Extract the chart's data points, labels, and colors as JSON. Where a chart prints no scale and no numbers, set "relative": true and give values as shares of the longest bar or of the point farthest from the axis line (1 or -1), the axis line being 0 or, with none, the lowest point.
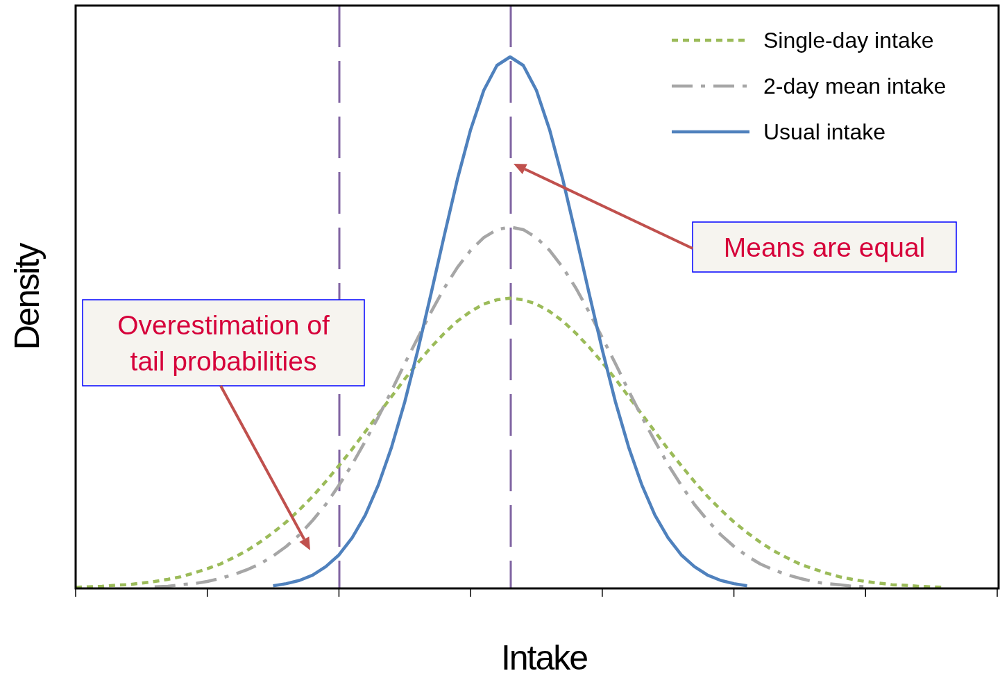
{
  "chart_data": {
    "type": "line",
    "xlabel": "Intake",
    "ylabel": "Density",
    "relative": true,
    "legend": "top right",
    "categories": [
      null,
      null,
      null,
      null,
      null,
      null,
      null,
      null,
      null,
      null,
      null,
      null,
      null,
      null,
      null,
      null,
      null,
      null,
      null,
      null,
      null,
      null,
      null,
      null,
      null,
      null,
      null,
      null,
      null,
      null,
      null,
      null,
      null,
      null,
      null,
      null,
      null,
      null,
      null,
      null,
      null,
      null,
      null,
      null,
      null,
      null,
      null,
      null,
      null,
      null,
      null,
      null,
      null,
      null,
      null,
      null,
      null,
      null,
      null,
      null,
      null,
      null,
      null,
      null,
      null,
      null,
      null,
      null,
      null,
      null,
      null
    ],
    "series": [
      {
        "name": "Single-day intake",
        "color": "#9bbb59",
        "line_style": "dotted",
        "values": [
          0.002,
          0.003,
          0.004,
          0.006,
          0.007,
          0.01,
          0.013,
          0.017,
          0.022,
          0.029,
          0.037,
          0.046,
          0.058,
          0.071,
          0.087,
          0.105,
          0.125,
          0.148,
          0.173,
          0.201,
          0.231,
          0.262,
          0.295,
          0.328,
          0.361,
          0.394,
          0.425,
          0.454,
          0.48,
          0.503,
          0.521,
          0.535,
          0.543,
          0.546,
          0.543,
          0.535,
          0.521,
          0.503,
          0.48,
          0.454,
          0.425,
          0.394,
          0.361,
          0.328,
          0.295,
          0.262,
          0.231,
          0.201,
          0.173,
          0.148,
          0.125,
          0.105,
          0.087,
          0.071,
          0.058,
          0.046,
          0.037,
          0.029,
          0.022,
          0.017,
          0.013,
          0.01,
          0.007,
          0.006,
          0.004,
          0.003,
          0.002,
          null,
          null,
          null,
          null
        ]
      },
      {
        "name": "2-day mean intake",
        "color": "#a6a6a6",
        "line_style": "dashed",
        "values": [
          null,
          null,
          null,
          null,
          null,
          null,
          0.003,
          0.004,
          0.007,
          0.009,
          0.013,
          0.019,
          0.026,
          0.035,
          0.046,
          0.061,
          0.079,
          0.101,
          0.128,
          0.158,
          0.194,
          0.233,
          0.277,
          0.323,
          0.372,
          0.423,
          0.472,
          0.52,
          0.565,
          0.604,
          0.636,
          0.66,
          0.675,
          0.68,
          0.675,
          0.66,
          0.636,
          0.604,
          0.565,
          0.52,
          0.472,
          0.423,
          0.372,
          0.323,
          0.277,
          0.233,
          0.194,
          0.158,
          0.128,
          0.101,
          0.079,
          0.061,
          0.046,
          0.035,
          0.026,
          0.019,
          0.013,
          0.009,
          0.007,
          0.004,
          0.003,
          null,
          null,
          null,
          null,
          null,
          null,
          null,
          null,
          null,
          null
        ]
      },
      {
        "name": "Usual intake",
        "color": "#4f81bd",
        "line_style": "solid",
        "values": [
          null,
          null,
          null,
          null,
          null,
          null,
          null,
          null,
          null,
          null,
          null,
          null,
          null,
          null,
          null,
          0.005,
          0.009,
          0.015,
          0.025,
          0.041,
          0.063,
          0.095,
          0.138,
          0.195,
          0.266,
          0.351,
          0.449,
          0.555,
          0.664,
          0.77,
          0.863,
          0.937,
          0.984,
          1,
          0.984,
          0.937,
          0.863,
          0.77,
          0.664,
          0.555,
          0.449,
          0.351,
          0.266,
          0.195,
          0.138,
          0.095,
          0.063,
          0.041,
          0.025,
          0.015,
          0.009,
          0.005,
          null,
          null,
          null,
          null,
          null,
          null,
          null,
          null,
          null,
          null,
          null,
          null,
          null,
          null,
          null,
          null,
          null,
          null,
          null
        ]
      }
    ],
    "annotations": [
      "Means are equal",
      "Overestimation of tail probabilities"
    ]
  }
}
